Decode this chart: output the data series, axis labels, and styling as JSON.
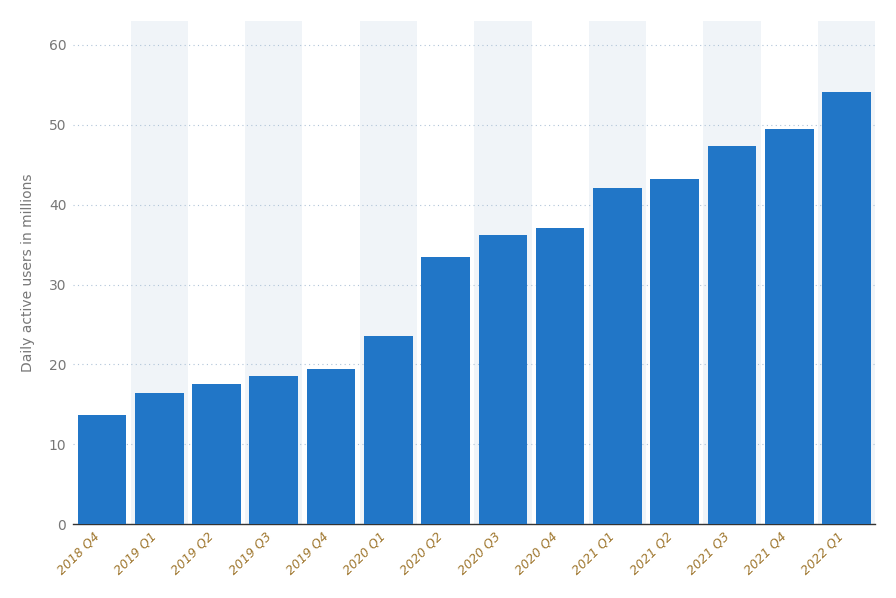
{
  "categories": [
    "2018 Q4",
    "2019 Q1",
    "2019 Q2",
    "2019 Q3",
    "2019 Q4",
    "2020 Q1",
    "2020 Q2",
    "2020 Q3",
    "2020 Q4",
    "2021 Q1",
    "2021 Q2",
    "2021 Q3",
    "2021 Q4",
    "2022 Q1"
  ],
  "values": [
    13.7,
    16.4,
    17.6,
    18.6,
    19.4,
    23.6,
    33.4,
    36.2,
    37.1,
    42.1,
    43.2,
    47.3,
    49.5,
    54.1
  ],
  "bar_color": "#2176c7",
  "ylabel": "Daily active users in millions",
  "ylim": [
    0,
    63
  ],
  "yticks": [
    0,
    10,
    20,
    30,
    40,
    50,
    60
  ],
  "grid_color": "#b0c4d8",
  "background_color": "#ffffff",
  "band_colors": [
    "#ffffff",
    "#f0f4f8"
  ],
  "tick_label_color": "#a07830",
  "ylabel_color": "#777777",
  "axis_label_fontsize": 10,
  "bar_width": 0.85
}
